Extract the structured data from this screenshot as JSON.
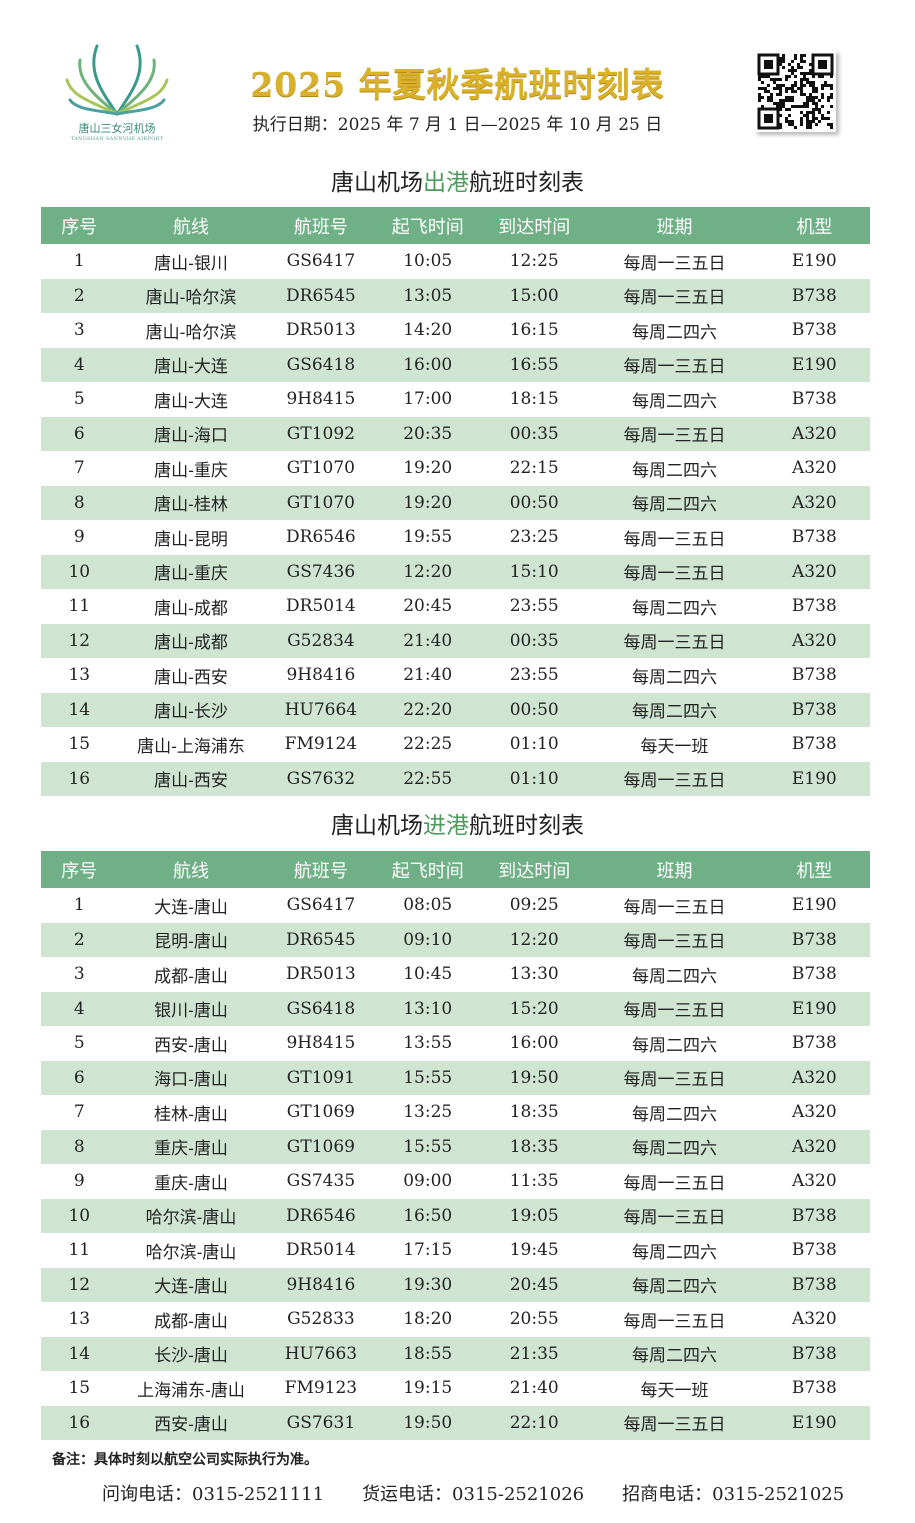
{
  "header": {
    "logo": {
      "name": "唐山三女河机场",
      "en": "TANGSHAN SANNVHE AIRPORT"
    },
    "title": "2025 年夏秋季航班时刻表",
    "dates": "执行日期：2025 年 7 月 1 日—2025 年 10 月 25 日",
    "qr_icon": "qr-code"
  },
  "colors": {
    "header_bg": "#6fb086",
    "alt_row": "#cfe5d2",
    "title_gold": "#d9b12a",
    "highlight": "#4e9b5e"
  },
  "columns": [
    "序号",
    "航线",
    "航班号",
    "起飞时间",
    "到达时间",
    "班期",
    "机型"
  ],
  "departures": {
    "title_pre": "唐山机场",
    "title_hl": "出港",
    "title_post": "航班时刻表",
    "rows": [
      [
        "1",
        "唐山-银川",
        "GS6417",
        "10:05",
        "12:25",
        "每周一三五日",
        "E190"
      ],
      [
        "2",
        "唐山-哈尔滨",
        "DR6545",
        "13:05",
        "15:00",
        "每周一三五日",
        "B738"
      ],
      [
        "3",
        "唐山-哈尔滨",
        "DR5013",
        "14:20",
        "16:15",
        "每周二四六",
        "B738"
      ],
      [
        "4",
        "唐山-大连",
        "GS6418",
        "16:00",
        "16:55",
        "每周一三五日",
        "E190"
      ],
      [
        "5",
        "唐山-大连",
        "9H8415",
        "17:00",
        "18:15",
        "每周二四六",
        "B738"
      ],
      [
        "6",
        "唐山-海口",
        "GT1092",
        "20:35",
        "00:35",
        "每周一三五日",
        "A320"
      ],
      [
        "7",
        "唐山-重庆",
        "GT1070",
        "19:20",
        "22:15",
        "每周二四六",
        "A320"
      ],
      [
        "8",
        "唐山-桂林",
        "GT1070",
        "19:20",
        "00:50",
        "每周二四六",
        "A320"
      ],
      [
        "9",
        "唐山-昆明",
        "DR6546",
        "19:55",
        "23:25",
        "每周一三五日",
        "B738"
      ],
      [
        "10",
        "唐山-重庆",
        "GS7436",
        "12:20",
        "15:10",
        "每周一三五日",
        "A320"
      ],
      [
        "11",
        "唐山-成都",
        "DR5014",
        "20:45",
        "23:55",
        "每周二四六",
        "B738"
      ],
      [
        "12",
        "唐山-成都",
        "G52834",
        "21:40",
        "00:35",
        "每周一三五日",
        "A320"
      ],
      [
        "13",
        "唐山-西安",
        "9H8416",
        "21:40",
        "23:55",
        "每周二四六",
        "B738"
      ],
      [
        "14",
        "唐山-长沙",
        "HU7664",
        "22:20",
        "00:50",
        "每周二四六",
        "B738"
      ],
      [
        "15",
        "唐山-上海浦东",
        "FM9124",
        "22:25",
        "01:10",
        "每天一班",
        "B738"
      ],
      [
        "16",
        "唐山-西安",
        "GS7632",
        "22:55",
        "01:10",
        "每周一三五日",
        "E190"
      ]
    ]
  },
  "arrivals": {
    "title_pre": "唐山机场",
    "title_hl": "进港",
    "title_post": "航班时刻表",
    "rows": [
      [
        "1",
        "大连-唐山",
        "GS6417",
        "08:05",
        "09:25",
        "每周一三五日",
        "E190"
      ],
      [
        "2",
        "昆明-唐山",
        "DR6545",
        "09:10",
        "12:20",
        "每周一三五日",
        "B738"
      ],
      [
        "3",
        "成都-唐山",
        "DR5013",
        "10:45",
        "13:30",
        "每周二四六",
        "B738"
      ],
      [
        "4",
        "银川-唐山",
        "GS6418",
        "13:10",
        "15:20",
        "每周一三五日",
        "E190"
      ],
      [
        "5",
        "西安-唐山",
        "9H8415",
        "13:55",
        "16:00",
        "每周二四六",
        "B738"
      ],
      [
        "6",
        "海口-唐山",
        "GT1091",
        "15:55",
        "19:50",
        "每周一三五日",
        "A320"
      ],
      [
        "7",
        "桂林-唐山",
        "GT1069",
        "13:25",
        "18:35",
        "每周二四六",
        "A320"
      ],
      [
        "8",
        "重庆-唐山",
        "GT1069",
        "15:55",
        "18:35",
        "每周二四六",
        "A320"
      ],
      [
        "9",
        "重庆-唐山",
        "GS7435",
        "09:00",
        "11:35",
        "每周一三五日",
        "A320"
      ],
      [
        "10",
        "哈尔滨-唐山",
        "DR6546",
        "16:50",
        "19:05",
        "每周一三五日",
        "B738"
      ],
      [
        "11",
        "哈尔滨-唐山",
        "DR5014",
        "17:15",
        "19:45",
        "每周二四六",
        "B738"
      ],
      [
        "12",
        "大连-唐山",
        "9H8416",
        "19:30",
        "20:45",
        "每周二四六",
        "B738"
      ],
      [
        "13",
        "成都-唐山",
        "G52833",
        "18:20",
        "20:55",
        "每周一三五日",
        "A320"
      ],
      [
        "14",
        "长沙-唐山",
        "HU7663",
        "18:55",
        "21:35",
        "每周二四六",
        "B738"
      ],
      [
        "15",
        "上海浦东-唐山",
        "FM9123",
        "19:15",
        "21:40",
        "每天一班",
        "B738"
      ],
      [
        "16",
        "西安-唐山",
        "GS7631",
        "19:50",
        "22:10",
        "每周一三五日",
        "E190"
      ]
    ]
  },
  "footer": {
    "note": "备注：具体时刻以航空公司实际执行为准。",
    "contacts": [
      "问询电话：0315-2521111",
      "货运电话：0315-2521026",
      "招商电话：0315-2521025"
    ]
  }
}
